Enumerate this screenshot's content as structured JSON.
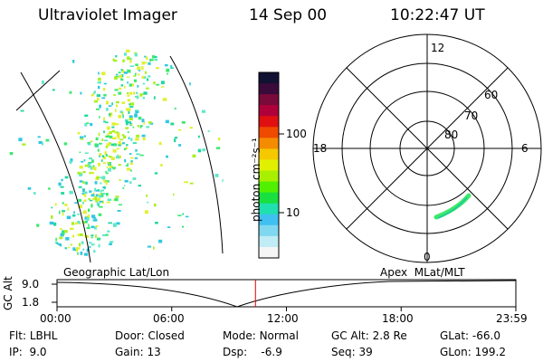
{
  "header": {
    "title": "Ultraviolet Imager",
    "date": "14 Sep 00",
    "time": "10:22:47 UT"
  },
  "colorbar": {
    "unit_label": "photon cm⁻²s⁻¹",
    "tick_labels": [
      "100",
      "10"
    ],
    "colors": [
      "#111133",
      "#3a0a3a",
      "#7a0a3a",
      "#b0003a",
      "#e01010",
      "#f04a00",
      "#f58c00",
      "#f5c800",
      "#e0f000",
      "#a8f000",
      "#50f000",
      "#18e040",
      "#20e0b0",
      "#40c0f0",
      "#80d8f0",
      "#c0ecf5",
      "#f5f5f5"
    ]
  },
  "polar": {
    "mlt_labels": {
      "top": "12",
      "left": "18",
      "right": "6",
      "bottom": "0"
    },
    "lat_labels": [
      "60",
      "70",
      "80"
    ]
  },
  "timeline": {
    "left_label": "Geographic Lat/Lon",
    "right_label": "Apex  MLat/MLT",
    "axis_title": "GC Alt",
    "y_ticks": [
      "9.0",
      "1.8"
    ],
    "x_ticks": [
      "00:00",
      "06:00",
      "12:00",
      "18:00",
      "23:59"
    ],
    "marker_time": "10:22:47",
    "marker_color": "#e00000"
  },
  "info": [
    {
      "key": "Flt:",
      "value": "LBHL"
    },
    {
      "key": "Door:",
      "value": "Closed"
    },
    {
      "key": "Mode:",
      "value": "Normal"
    },
    {
      "key": "GC Alt:",
      "value": "2.8 Re"
    },
    {
      "key": "GLat:",
      "value": "-66.0"
    },
    {
      "key": "IP:",
      "value": "9.0"
    },
    {
      "key": "Gain:",
      "value": "13"
    },
    {
      "key": "Dsp:",
      "value": "-6.9"
    },
    {
      "key": "Seq:",
      "value": "39"
    },
    {
      "key": "GLon:",
      "value": "199.2"
    }
  ]
}
